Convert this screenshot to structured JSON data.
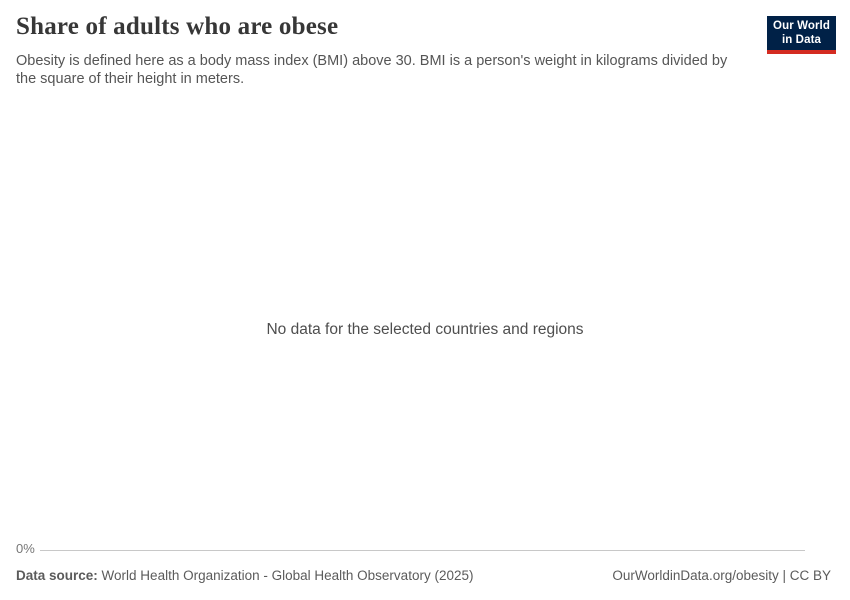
{
  "header": {
    "title": "Share of adults who are obese",
    "subtitle": "Obesity is defined here as a body mass index (BMI) above 30. BMI is a person's weight in kilograms divided by the square of their height in meters.",
    "logo": {
      "line1": "Our World",
      "line2": "in Data",
      "background_color": "#002147",
      "accent_color": "#d42b21",
      "text_color": "#ffffff"
    }
  },
  "chart": {
    "empty_message": "No data for the selected countries and regions",
    "y_axis": {
      "tick_label": "0%"
    },
    "axis_line_color": "#c8c8c8"
  },
  "footer": {
    "source_label": "Data source:",
    "source_text": "World Health Organization - Global Health Observatory (2025)",
    "rights": "OurWorldinData.org/obesity | CC BY"
  },
  "chart_data": {
    "type": "line",
    "title": "Share of adults who are obese",
    "subtitle": "Obesity is defined here as a body mass index (BMI) above 30. BMI is a person's weight in kilograms divided by the square of their height in meters.",
    "categories": [],
    "series": [],
    "y_ticks": [
      "0%"
    ],
    "grid": false,
    "legend": "none",
    "empty_message": "No data for the selected countries and regions"
  }
}
